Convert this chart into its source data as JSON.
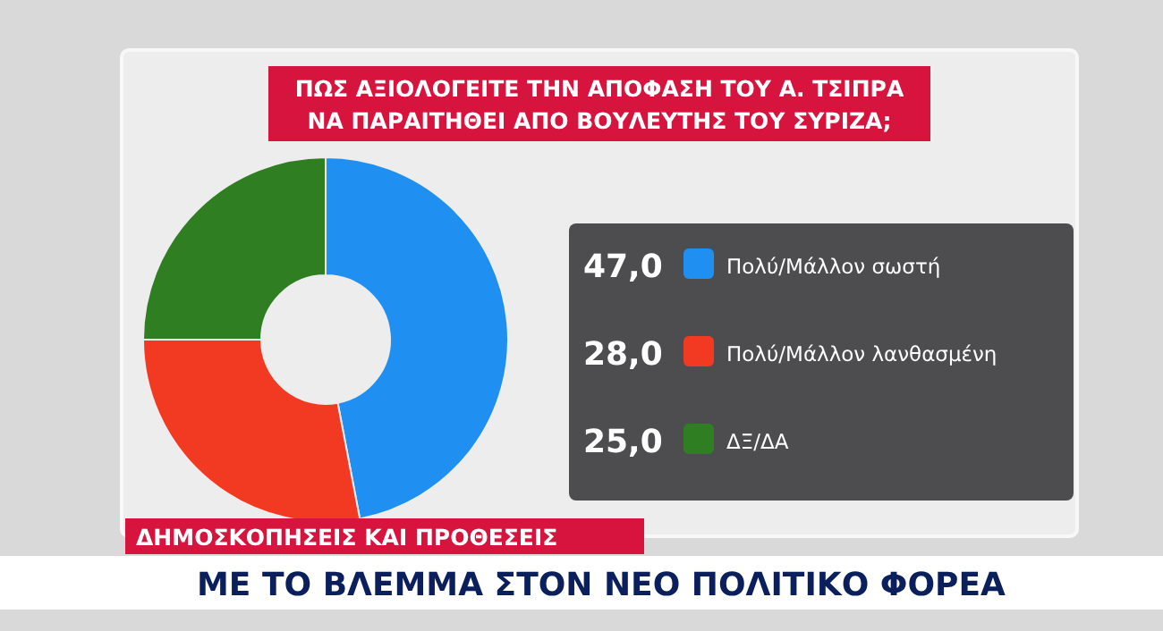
{
  "chart_data": {
    "type": "donut",
    "title": "ΠΩΣ ΑΞΙΟΛΟΓΕΙΤΕ ΤΗΝ ΑΠΟΦΑΣΗ ΤΟΥ Α. ΤΣΙΠΡΑ ΝΑ ΠΑΡΑΙΤΗΘΕΙ ΑΠΟ ΒΟΥΛΕΥΤΗΣ ΤΟΥ ΣΥΡΙΖΑ;",
    "categories": [
      "Πολύ/Μάλλον σωστή",
      "Πολύ/Μάλλον λανθασμένη",
      "ΔΞ/ΔΑ"
    ],
    "values": [
      47,
      28,
      25
    ],
    "value_labels": [
      "47,0",
      "28,0",
      "25,0"
    ],
    "colors": [
      "#1f8ff2",
      "#f23a22",
      "#2f7f22"
    ],
    "legend": "right",
    "annotations": [
      "ΔΗΜΟΣΚΟΠΗΣΕΙΣ ΚΑΙ ΠΡΟΘΕΣΕΙΣ",
      "ΜΕ ΤΟ ΒΛΕΜΜΑ ΣΤΟΝ ΝΕΟ ΠΟΛΙΤΙΚΟ ΦΟΡΕΑ"
    ]
  }
}
